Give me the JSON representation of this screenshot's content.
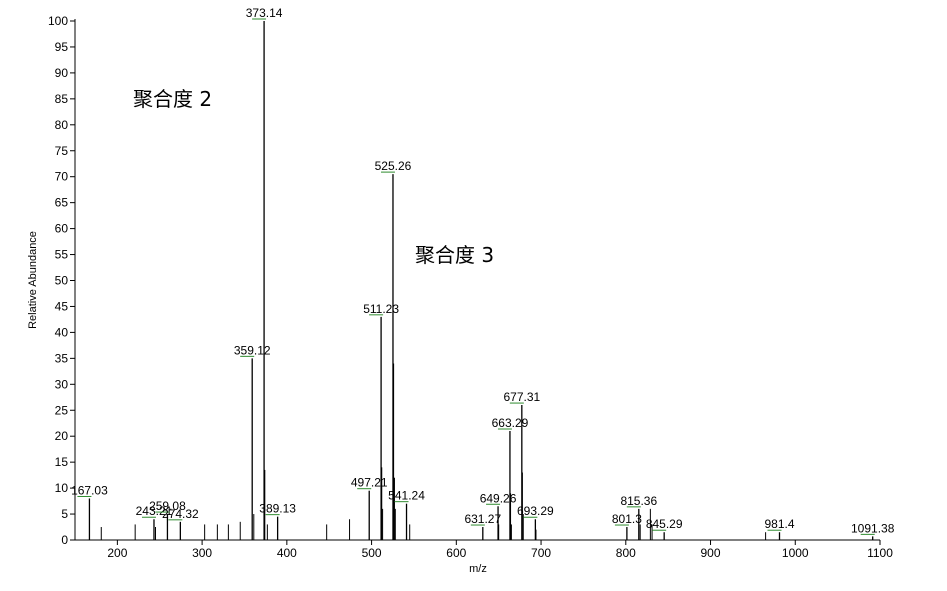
{
  "chart_data": {
    "type": "spectrum",
    "xlabel": "m/z",
    "ylabel": "Relative Abundance",
    "annotations": [
      "聚合度 2",
      "聚合度 3"
    ],
    "x": [
      167.03,
      243.21,
      259.08,
      274.32,
      359.12,
      373.14,
      389.13,
      497.21,
      511.23,
      525.26,
      541.24,
      631.27,
      649.26,
      663.29,
      677.31,
      693.29,
      801.3,
      815.36,
      845.29,
      981.4,
      1091.38
    ],
    "values": [
      8,
      4,
      5,
      3.5,
      35,
      100,
      4.5,
      9.5,
      43,
      70.5,
      7,
      2.5,
      6.5,
      21,
      26,
      4,
      2.5,
      6,
      1.5,
      1.5,
      0.7
    ],
    "minor_x": [
      181,
      221,
      245,
      303,
      318,
      331,
      345,
      361,
      374,
      377,
      447,
      474,
      512,
      513,
      526,
      527,
      528,
      545,
      650,
      664,
      665,
      678,
      679,
      694,
      817,
      829,
      831,
      965
    ],
    "minor_values": [
      2.5,
      3,
      2.5,
      3,
      3,
      3,
      3.5,
      5,
      13.5,
      3,
      3,
      4,
      14,
      6,
      34,
      12,
      6,
      3,
      3,
      9,
      3,
      13,
      5,
      2,
      3,
      6,
      3,
      1.5
    ],
    "color": "#000000",
    "label_underline": "#2e8b2e",
    "xlim": [
      150,
      1100
    ],
    "xticks": [
      200,
      300,
      400,
      500,
      600,
      700,
      800,
      900,
      1000,
      1100
    ],
    "ylim": [
      0,
      100
    ],
    "yticks": [
      0,
      5,
      10,
      15,
      20,
      25,
      30,
      35,
      40,
      45,
      50,
      55,
      60,
      65,
      70,
      75,
      80,
      85,
      90,
      95,
      100
    ]
  }
}
